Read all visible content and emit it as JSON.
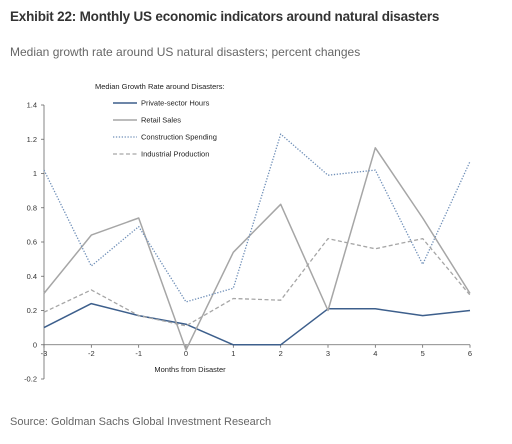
{
  "header": {
    "title": "Exhibit 22: Monthly US economic indicators around natural disasters",
    "subtitle": "Median growth rate around US natural disasters; percent changes"
  },
  "footer": {
    "source": "Source: Goldman Sachs Global Investment Research"
  },
  "chart_data": {
    "type": "line",
    "title": "Median Growth Rate around Disasters:",
    "xlabel": "Months from Disaster",
    "ylabel": "",
    "x": [
      -3,
      -2,
      -1,
      0,
      1,
      2,
      3,
      4,
      5,
      6
    ],
    "x_tick_labels": [
      "-3",
      "-2",
      "-1",
      "0",
      "1",
      "2",
      "3",
      "4",
      "5",
      "6"
    ],
    "xlim": [
      -3,
      6
    ],
    "ylim": [
      -0.2,
      1.4
    ],
    "y_ticks": [
      -0.2,
      0,
      0.2,
      0.4,
      0.6,
      0.8,
      1,
      1.2,
      1.4
    ],
    "y_tick_labels": [
      "-0.2",
      "0",
      "0.2",
      "0.4",
      "0.6",
      "0.8",
      "1",
      "1.2",
      "1.4"
    ],
    "grid": false,
    "legend_position": "top-center",
    "series": [
      {
        "name": "Private-sector Hours",
        "values": [
          0.1,
          0.24,
          0.17,
          0.12,
          0.0,
          0.0,
          0.21,
          0.21,
          0.17,
          0.2
        ],
        "color": "#3d5f8c",
        "style": "solid"
      },
      {
        "name": "Retail Sales",
        "values": [
          0.3,
          0.64,
          0.74,
          -0.03,
          0.54,
          0.82,
          0.2,
          1.15,
          0.74,
          0.3
        ],
        "color": "#a6a6a6",
        "style": "solid"
      },
      {
        "name": "Construction Spending",
        "values": [
          1.02,
          0.46,
          0.69,
          0.25,
          0.33,
          1.23,
          0.99,
          1.02,
          0.47,
          1.07
        ],
        "color": "#6f8fb8",
        "style": "dotted"
      },
      {
        "name": "Industrial Production",
        "values": [
          0.19,
          0.32,
          0.17,
          0.11,
          0.27,
          0.26,
          0.62,
          0.56,
          0.62,
          0.29
        ],
        "color": "#a6a6a6",
        "style": "dashed"
      }
    ]
  }
}
